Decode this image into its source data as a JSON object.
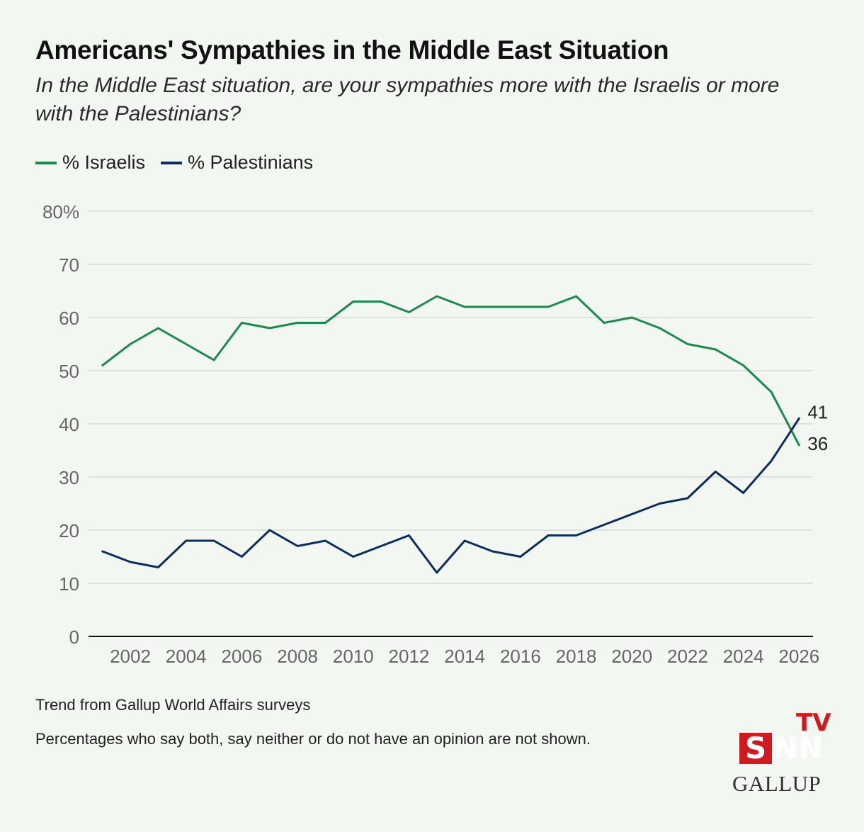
{
  "title": "Americans' Sympathies in the Middle East Situation",
  "subtitle": "In the Middle East situation, are your sympathies more with the Israelis or more with the Palestinians?",
  "legend": [
    {
      "label": "% Israelis",
      "color": "#1a8a4f"
    },
    {
      "label": "% Palestinians",
      "color": "#0d2d62"
    }
  ],
  "notes": {
    "source": "Trend from Gallup World Affairs surveys",
    "footnote": "Percentages who say both, say neither or do not have an opinion are not shown."
  },
  "logos": {
    "snn_s": "S",
    "snn_nn": "NN",
    "tv": "TV",
    "gallup": "GALLUP"
  },
  "chart_data": {
    "type": "line",
    "xlim": [
      2000.5,
      2026.5
    ],
    "ylim": [
      0,
      80
    ],
    "y_ticks": [
      0,
      10,
      20,
      30,
      40,
      50,
      60,
      70,
      80
    ],
    "y_tick_labels": [
      "0",
      "10",
      "20",
      "30",
      "40",
      "50",
      "60",
      "70",
      "80%"
    ],
    "x_ticks": [
      2002,
      2004,
      2006,
      2008,
      2010,
      2012,
      2014,
      2016,
      2018,
      2020,
      2022,
      2024,
      2026
    ],
    "grid": true,
    "legend_position": "top-left",
    "x": [
      2001,
      2002,
      2003,
      2004,
      2005,
      2006,
      2007,
      2008,
      2009,
      2010,
      2011,
      2012,
      2013,
      2014,
      2015,
      2016,
      2017,
      2018,
      2019,
      2020,
      2021,
      2022,
      2023,
      2024,
      2025,
      2026
    ],
    "series": [
      {
        "name": "% Israelis",
        "color": "#1a8a4f",
        "values": [
          51,
          55,
          58,
          55,
          52,
          59,
          58,
          59,
          59,
          63,
          63,
          61,
          64,
          62,
          62,
          62,
          62,
          64,
          59,
          60,
          58,
          55,
          54,
          51,
          46,
          36
        ],
        "end_label": "36"
      },
      {
        "name": "% Palestinians",
        "color": "#0d2d62",
        "values": [
          16,
          14,
          13,
          18,
          18,
          15,
          20,
          17,
          18,
          15,
          17,
          19,
          12,
          18,
          16,
          15,
          19,
          19,
          21,
          23,
          25,
          26,
          31,
          27,
          33,
          41
        ],
        "end_label": "41"
      }
    ]
  }
}
